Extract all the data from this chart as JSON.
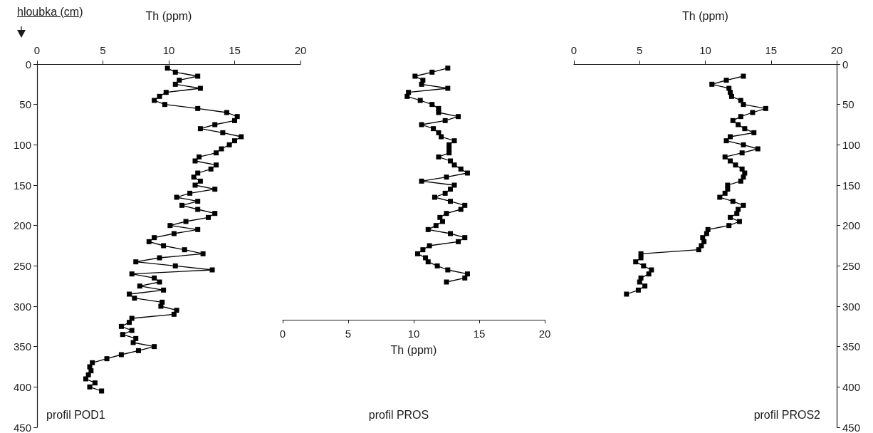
{
  "chart_data": [
    {
      "type": "line",
      "xlabel": "Th (ppm)",
      "ylabel": "hloubka (cm)",
      "annotations": [
        "profil POD1"
      ],
      "marker": "square",
      "line_style": "solid",
      "xlim": [
        0,
        20
      ],
      "xticks": [
        0,
        5,
        10,
        15,
        20
      ],
      "ylim": [
        450,
        0
      ],
      "yticks": [
        0,
        50,
        100,
        150,
        200,
        250,
        300,
        350,
        400,
        450
      ],
      "series": [
        {
          "color": "#000000",
          "x": [
            9.9,
            10.5,
            12.2,
            10.8,
            10.5,
            12.4,
            9.8,
            9.3,
            8.9,
            9.7,
            12.2,
            14.4,
            15.2,
            15.0,
            13.5,
            12.4,
            14.1,
            15.5,
            15.0,
            14.6,
            14.0,
            13.6,
            12.3,
            12.0,
            13.6,
            13.2,
            12.2,
            11.9,
            12.4,
            12.0,
            13.5,
            11.6,
            10.6,
            12.2,
            11.0,
            12.2,
            13.5,
            13.0,
            11.3,
            10.1,
            12.2,
            10.4,
            8.9,
            8.5,
            9.6,
            11.2,
            12.6,
            9.3,
            7.5,
            10.5,
            13.3,
            7.2,
            8.9,
            9.3,
            7.8,
            9.6,
            7.0,
            7.4,
            9.5,
            9.4,
            10.6,
            10.4,
            7.2,
            7.0,
            6.4,
            7.2,
            6.5,
            7.5,
            7.3,
            8.9,
            7.7,
            6.4,
            5.3,
            4.2,
            4.0,
            4.1,
            3.9,
            3.7,
            4.4,
            4.0,
            4.9
          ],
          "values": [
            5,
            10,
            15,
            20,
            25,
            30,
            35,
            40,
            45,
            50,
            55,
            60,
            65,
            70,
            75,
            80,
            85,
            90,
            95,
            100,
            105,
            110,
            115,
            120,
            125,
            130,
            135,
            140,
            145,
            150,
            155,
            160,
            165,
            170,
            175,
            180,
            185,
            190,
            195,
            200,
            205,
            210,
            215,
            220,
            225,
            230,
            235,
            240,
            245,
            250,
            255,
            260,
            265,
            270,
            275,
            280,
            285,
            290,
            295,
            300,
            305,
            310,
            315,
            320,
            325,
            330,
            335,
            340,
            345,
            350,
            355,
            360,
            365,
            370,
            375,
            380,
            385,
            390,
            395,
            400,
            405
          ]
        }
      ]
    },
    {
      "type": "line",
      "xlabel": "Th (ppm)",
      "annotations": [
        "profil PROS"
      ],
      "marker": "square",
      "line_style": "solid",
      "tick_labels": "x",
      "xlim": [
        0,
        20
      ],
      "xticks": [
        0,
        5,
        10,
        15,
        20
      ],
      "ylim": [
        450,
        0
      ],
      "series": [
        {
          "color": "#000000",
          "x": [
            12.6,
            11.4,
            10.1,
            10.7,
            10.6,
            12.6,
            9.6,
            9.5,
            10.5,
            11.4,
            11.9,
            11.9,
            13.4,
            12.4,
            10.6,
            11.5,
            11.9,
            12.1,
            13.1,
            12.7,
            12.7,
            12.7,
            11.9,
            12.8,
            13.1,
            13.6,
            14.1,
            12.5,
            10.6,
            13.1,
            12.8,
            12.4,
            11.6,
            12.8,
            13.9,
            13.6,
            12.5,
            12.0,
            12.2,
            11.7,
            11.1,
            12.8,
            13.9,
            13.4,
            11.2,
            10.7,
            10.3,
            10.9,
            11.1,
            11.8,
            12.6,
            14.1,
            13.9,
            12.5
          ],
          "values": [
            5,
            10,
            15,
            20,
            25,
            30,
            35,
            40,
            45,
            50,
            55,
            60,
            65,
            70,
            75,
            80,
            85,
            90,
            95,
            100,
            105,
            110,
            115,
            120,
            125,
            130,
            135,
            140,
            145,
            150,
            155,
            160,
            165,
            170,
            175,
            180,
            185,
            190,
            195,
            200,
            205,
            210,
            215,
            220,
            225,
            230,
            235,
            240,
            245,
            250,
            255,
            260,
            265,
            270
          ]
        }
      ]
    },
    {
      "type": "line",
      "xlabel": "Th (ppm)",
      "annotations": [
        "profil PROS2"
      ],
      "marker": "square",
      "line_style": "solid",
      "xlim": [
        0,
        20
      ],
      "xticks": [
        0,
        5,
        10,
        15,
        20
      ],
      "ylim": [
        450,
        0
      ],
      "yticks": [
        0,
        50,
        100,
        150,
        200,
        250,
        300,
        350,
        400,
        450
      ],
      "series": [
        {
          "color": "#000000",
          "x": [
            12.9,
            11.6,
            10.5,
            11.8,
            11.9,
            12.0,
            12.7,
            12.9,
            14.6,
            13.6,
            12.7,
            12.1,
            12.5,
            13.0,
            13.7,
            11.9,
            11.6,
            12.9,
            14.0,
            12.8,
            11.5,
            11.9,
            12.3,
            12.8,
            13.0,
            12.9,
            12.7,
            11.7,
            11.7,
            11.5,
            11.1,
            12.1,
            12.9,
            12.5,
            12.4,
            11.9,
            12.6,
            11.8,
            10.2,
            10.1,
            9.8,
            9.9,
            9.7,
            9.5,
            5.1,
            5.1,
            4.7,
            5.3,
            5.9,
            5.7,
            5.1,
            5.0,
            5.4,
            4.9,
            4.0
          ],
          "values": [
            15,
            20,
            25,
            30,
            35,
            40,
            45,
            50,
            55,
            60,
            65,
            70,
            75,
            80,
            85,
            90,
            95,
            100,
            105,
            110,
            115,
            120,
            125,
            130,
            135,
            140,
            145,
            150,
            155,
            160,
            165,
            170,
            175,
            180,
            185,
            190,
            195,
            200,
            205,
            210,
            215,
            220,
            225,
            230,
            235,
            240,
            245,
            250,
            255,
            260,
            265,
            270,
            275,
            280,
            285
          ]
        }
      ]
    }
  ]
}
